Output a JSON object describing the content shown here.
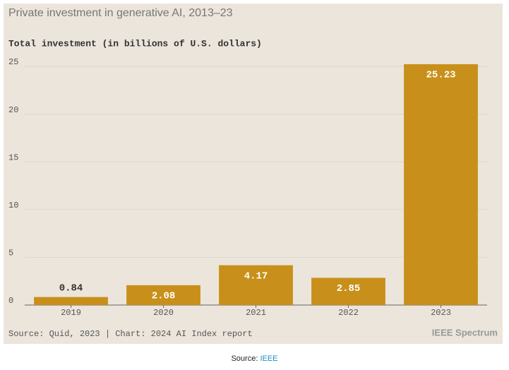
{
  "chart_data": {
    "type": "bar",
    "title": "Private investment in generative AI, 2013–23",
    "subtitle": "Total investment (in billions of U.S. dollars)",
    "categories": [
      "2019",
      "2020",
      "2021",
      "2022",
      "2023"
    ],
    "values": [
      0.84,
      2.08,
      4.17,
      2.85,
      25.23
    ],
    "color": "#c8901a",
    "ylim": [
      0,
      26
    ],
    "yticks": [
      0,
      5,
      10,
      15,
      20,
      25
    ],
    "grid": true,
    "source": "Source: Quid, 2023 | Chart: 2024 AI Index report",
    "brand": "IEEE Spectrum"
  },
  "caption": {
    "label": "Source:",
    "link": "IEEE"
  }
}
